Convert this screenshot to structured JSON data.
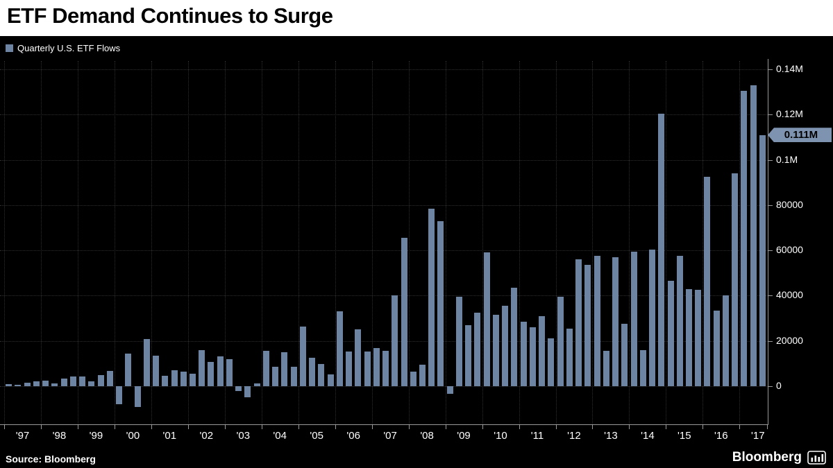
{
  "header": {
    "title": "ETF Demand Continues to Surge"
  },
  "legend": {
    "label": "Quarterly U.S. ETF Flows"
  },
  "axis": {
    "y_tick_labels_top_to_bottom": [
      "0.14M",
      "0.12M",
      "0.1M",
      "80000",
      "60000",
      "40000",
      "20000",
      "0"
    ],
    "current_value_label": "0.111M",
    "x_ticks": [
      "'97",
      "'98",
      "'99",
      "'00",
      "'01",
      "'02",
      "'03",
      "'04",
      "'05",
      "'06",
      "'07",
      "'08",
      "'09",
      "'10",
      "'11",
      "'12",
      "'13",
      "'14",
      "'15",
      "'16",
      "'17"
    ]
  },
  "footer": {
    "source": "Source:  Bloomberg",
    "brand": "Bloomberg"
  },
  "colors": {
    "bar": "#6d84a2",
    "background": "#000000",
    "header_bg": "#ffffff",
    "callout_bg": "#7e93af",
    "callout_text": "#000000",
    "grid": "#2f2f2f",
    "axis_line": "#9a9a9a",
    "text": "#ffffff"
  },
  "chart_data": {
    "type": "bar",
    "title": "ETF Demand Continues to Surge",
    "series_name": "Quarterly U.S. ETF Flows",
    "frequency": "quarterly",
    "x_start": "1997-Q1",
    "x_end": "2017-Q3",
    "values": [
      1000,
      700,
      1600,
      2300,
      2600,
      1100,
      3500,
      4300,
      4400,
      2100,
      4900,
      6900,
      -7800,
      14500,
      -9300,
      20700,
      13600,
      4600,
      7200,
      6600,
      5400,
      16000,
      10600,
      13100,
      12100,
      -2100,
      -4800,
      1100,
      15600,
      8600,
      15100,
      8700,
      26300,
      12600,
      9700,
      5200,
      33200,
      15200,
      25000,
      15300,
      17000,
      15500,
      40000,
      65500,
      6500,
      9500,
      78500,
      73000,
      -3500,
      39500,
      27000,
      32500,
      59000,
      31500,
      35500,
      43500,
      28500,
      26000,
      31000,
      21000,
      39500,
      25500,
      56000,
      53500,
      57500,
      15500,
      57000,
      27500,
      59500,
      16000,
      60500,
      120500,
      46500,
      57500,
      43000,
      42500,
      92500,
      33500,
      40000,
      94000,
      130500,
      133000,
      111000
    ],
    "y_gridline_values": [
      0,
      20000,
      40000,
      60000,
      80000,
      100000,
      120000,
      140000
    ],
    "y_tick_labels": [
      "0",
      "20000",
      "40000",
      "60000",
      "80000",
      "0.1M",
      "0.12M",
      "0.14M"
    ],
    "x_tick_labels": [
      "'97",
      "'98",
      "'99",
      "'00",
      "'01",
      "'02",
      "'03",
      "'04",
      "'05",
      "'06",
      "'07",
      "'08",
      "'09",
      "'10",
      "'11",
      "'12",
      "'13",
      "'14",
      "'15",
      "'16",
      "'17"
    ],
    "latest_value": 111000,
    "latest_label": "0.111M",
    "ylim": [
      -17000,
      145000
    ],
    "grid": true,
    "legend_position": "top-left"
  }
}
